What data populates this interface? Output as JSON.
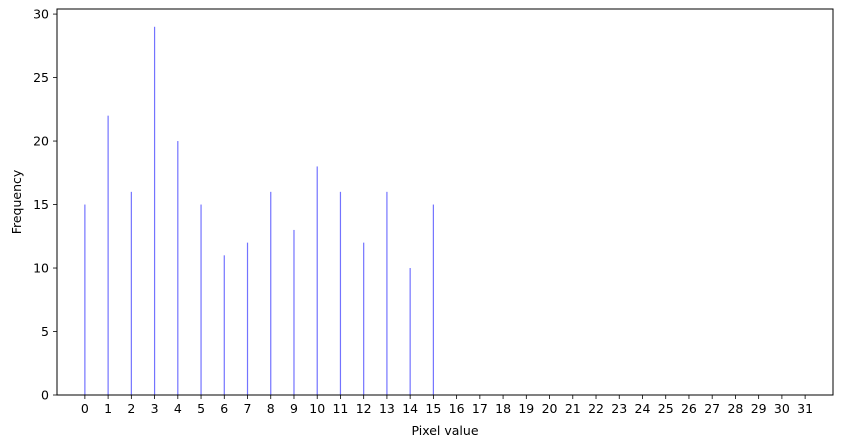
{
  "chart_data": {
    "type": "bar",
    "title": "",
    "xlabel": "Pixel value",
    "ylabel": "Frequency",
    "x_ticks": [
      0,
      1,
      2,
      3,
      4,
      5,
      6,
      7,
      8,
      9,
      10,
      11,
      12,
      13,
      14,
      15,
      16,
      17,
      18,
      19,
      20,
      21,
      22,
      23,
      24,
      25,
      26,
      27,
      28,
      29,
      30,
      31
    ],
    "y_ticks": [
      0,
      5,
      10,
      15,
      20,
      25,
      30
    ],
    "xlim": [
      -1.2,
      32.2
    ],
    "ylim": [
      0,
      30.4
    ],
    "grid": false,
    "bar_color": "#0000ff",
    "x": [
      0,
      1,
      2,
      3,
      4,
      5,
      6,
      7,
      8,
      9,
      10,
      11,
      12,
      13,
      14,
      15,
      16,
      17,
      18,
      19,
      20,
      21,
      22,
      23,
      24,
      25,
      26,
      27,
      28,
      29,
      30,
      31
    ],
    "values": [
      15,
      22,
      16,
      29,
      20,
      15,
      11,
      12,
      16,
      13,
      18,
      16,
      12,
      16,
      10,
      15,
      0,
      0,
      0,
      0,
      0,
      0,
      0,
      0,
      0,
      0,
      0,
      0,
      0,
      0,
      0,
      0
    ]
  }
}
